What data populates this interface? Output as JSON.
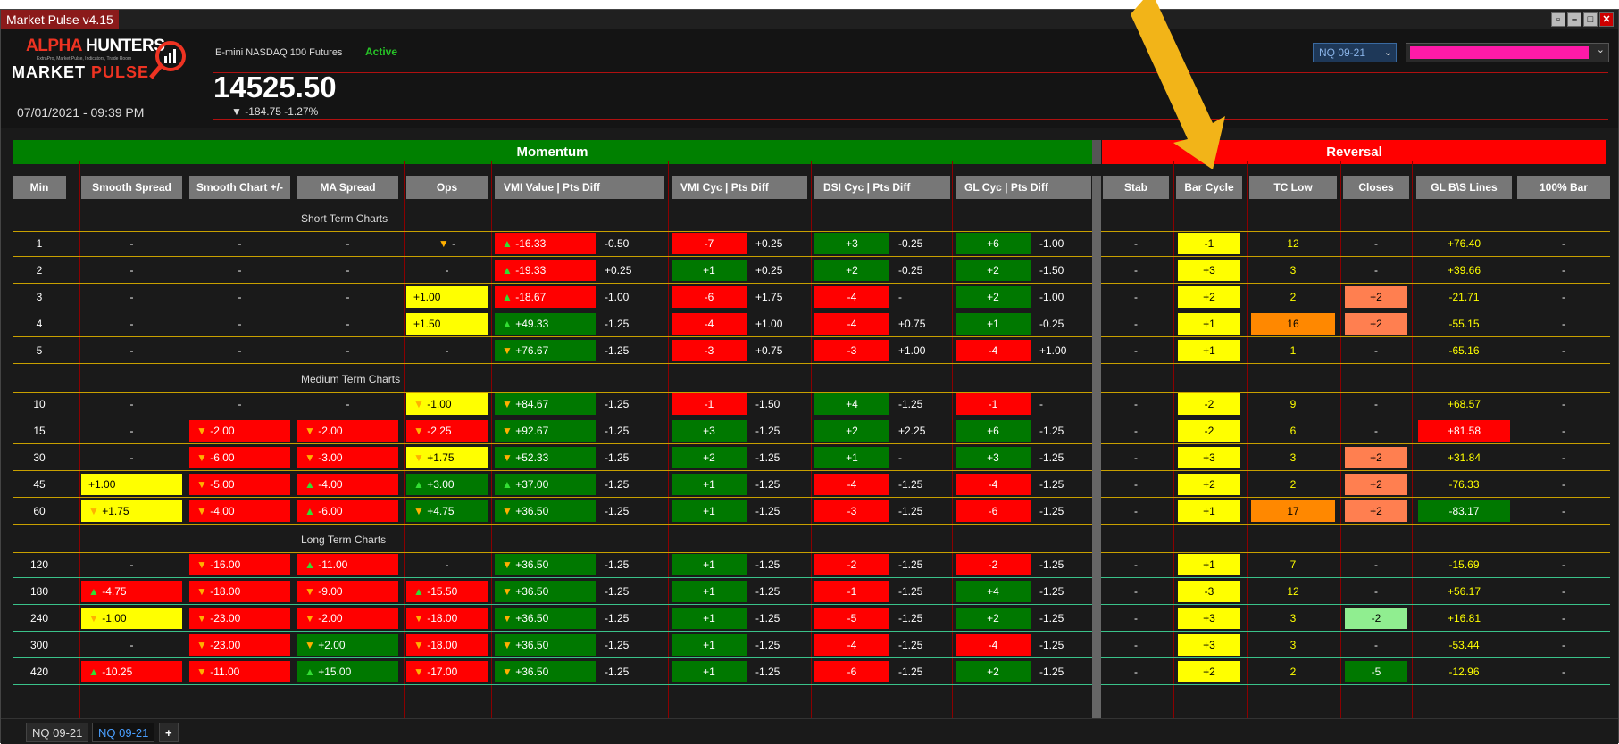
{
  "window": {
    "title": "Market Pulse v4.15"
  },
  "header": {
    "logo_line1_a": "ALPHA",
    "logo_line1_b": "HUNTERS",
    "logo_sub": "ExtraPro, Market Pulse, Indicators, Trade Room",
    "logo_line2_a": "MARKET",
    "logo_line2_b": "PULSE",
    "instrument": "E-mini NASDAQ 100 Futures",
    "status": "Active",
    "price": "14525.50",
    "change": "▼ -184.75 -1.27%",
    "datetime": "07/01/2021 - 09:39 PM",
    "symbol_select": "NQ 09-21",
    "color_select": "#ff1aa8"
  },
  "banners": {
    "momentum": "Momentum",
    "reversal": "Reversal"
  },
  "columns": [
    "Min",
    "Smooth Spread",
    "Smooth Chart +/-",
    "MA Spread",
    "Ops",
    "VMI Value | Pts Diff",
    "VMI Cyc | Pts Diff",
    "DSI Cyc | Pts Diff",
    "GL Cyc | Pts Diff",
    "Stab",
    "Bar Cycle",
    "TC Low",
    "Closes",
    "GL B\\S Lines",
    "100% Bar"
  ],
  "sections": [
    "Short Term Charts",
    "Medium Term Charts",
    "Long Term Charts"
  ],
  "rows": [
    {
      "min": "1",
      "ss": [
        "-",
        ""
      ],
      "sc": [
        "-",
        ""
      ],
      "ma": [
        "-",
        ""
      ],
      "ops": [
        "▼ -",
        "",
        ""
      ],
      "vmi": [
        "▲ -16.33",
        "red",
        "-0.50"
      ],
      "vmic": [
        "-7",
        "red",
        "+0.25"
      ],
      "dsi": [
        "+3",
        "green",
        "-0.25"
      ],
      "gl": [
        "+6",
        "green",
        "-1.00"
      ],
      "stab": "-",
      "bar": [
        "-1",
        "yellow"
      ],
      "tc": [
        "12",
        ""
      ],
      "closes": [
        "-",
        ""
      ],
      "glbs": [
        "+76.40",
        ""
      ],
      "b100": "-"
    },
    {
      "min": "2",
      "ss": [
        "-",
        ""
      ],
      "sc": [
        "-",
        ""
      ],
      "ma": [
        "-",
        ""
      ],
      "ops": [
        "-",
        "",
        ""
      ],
      "vmi": [
        "▲ -19.33",
        "red",
        "+0.25"
      ],
      "vmic": [
        "+1",
        "green",
        "+0.25"
      ],
      "dsi": [
        "+2",
        "green",
        "-0.25"
      ],
      "gl": [
        "+2",
        "green",
        "-1.50"
      ],
      "stab": "-",
      "bar": [
        "+3",
        "yellow"
      ],
      "tc": [
        "3",
        ""
      ],
      "closes": [
        "-",
        ""
      ],
      "glbs": [
        "+39.66",
        ""
      ],
      "b100": "-"
    },
    {
      "min": "3",
      "ss": [
        "-",
        ""
      ],
      "sc": [
        "-",
        ""
      ],
      "ma": [
        "-",
        ""
      ],
      "ops": [
        "+1.00",
        "yellow",
        ""
      ],
      "vmi": [
        "▲ -18.67",
        "red",
        "-1.00"
      ],
      "vmic": [
        "-6",
        "red",
        "+1.75"
      ],
      "dsi": [
        "-4",
        "red",
        "-"
      ],
      "gl": [
        "+2",
        "green",
        "-1.00"
      ],
      "stab": "-",
      "bar": [
        "+2",
        "yellow"
      ],
      "tc": [
        "2",
        ""
      ],
      "closes": [
        "+2",
        "salmon"
      ],
      "glbs": [
        "-21.71",
        ""
      ],
      "b100": "-"
    },
    {
      "min": "4",
      "ss": [
        "-",
        ""
      ],
      "sc": [
        "-",
        ""
      ],
      "ma": [
        "-",
        ""
      ],
      "ops": [
        "+1.50",
        "yellow",
        ""
      ],
      "vmi": [
        "▲ +49.33",
        "green",
        "-1.25"
      ],
      "vmic": [
        "-4",
        "red",
        "+1.00"
      ],
      "dsi": [
        "-4",
        "red",
        "+0.75"
      ],
      "gl": [
        "+1",
        "green",
        "-0.25"
      ],
      "stab": "-",
      "bar": [
        "+1",
        "yellow"
      ],
      "tc": [
        "16",
        "orange"
      ],
      "closes": [
        "+2",
        "salmon"
      ],
      "glbs": [
        "-55.15",
        ""
      ],
      "b100": "-"
    },
    {
      "min": "5",
      "ss": [
        "-",
        ""
      ],
      "sc": [
        "-",
        ""
      ],
      "ma": [
        "-",
        ""
      ],
      "ops": [
        "-",
        "",
        ""
      ],
      "vmi": [
        "▼ +76.67",
        "green",
        "-1.25"
      ],
      "vmic": [
        "-3",
        "red",
        "+0.75"
      ],
      "dsi": [
        "-3",
        "red",
        "+1.00"
      ],
      "gl": [
        "-4",
        "red",
        "+1.00"
      ],
      "stab": "-",
      "bar": [
        "+1",
        "yellow"
      ],
      "tc": [
        "1",
        ""
      ],
      "closes": [
        "-",
        ""
      ],
      "glbs": [
        "-65.16",
        ""
      ],
      "b100": "-"
    },
    {
      "min": "10",
      "ss": [
        "-",
        ""
      ],
      "sc": [
        "-",
        ""
      ],
      "ma": [
        "-",
        ""
      ],
      "ops": [
        "▼ -1.00",
        "yellow",
        ""
      ],
      "vmi": [
        "▼ +84.67",
        "green",
        "-1.25"
      ],
      "vmic": [
        "-1",
        "red",
        "-1.50"
      ],
      "dsi": [
        "+4",
        "green",
        "-1.25"
      ],
      "gl": [
        "-1",
        "red",
        "-"
      ],
      "stab": "-",
      "bar": [
        "-2",
        "yellow"
      ],
      "tc": [
        "9",
        ""
      ],
      "closes": [
        "-",
        ""
      ],
      "glbs": [
        "+68.57",
        ""
      ],
      "b100": "-"
    },
    {
      "min": "15",
      "ss": [
        "-",
        ""
      ],
      "sc": [
        "▼ -2.00",
        "red"
      ],
      "ma": [
        "▼ -2.00",
        "red"
      ],
      "ops": [
        "▼ -2.25",
        "red",
        ""
      ],
      "vmi": [
        "▼ +92.67",
        "green",
        "-1.25"
      ],
      "vmic": [
        "+3",
        "green",
        "-1.25"
      ],
      "dsi": [
        "+2",
        "green",
        "+2.25"
      ],
      "gl": [
        "+6",
        "green",
        "-1.25"
      ],
      "stab": "-",
      "bar": [
        "-2",
        "yellow"
      ],
      "tc": [
        "6",
        ""
      ],
      "closes": [
        "-",
        ""
      ],
      "glbs": [
        "+81.58",
        "red"
      ],
      "b100": "-"
    },
    {
      "min": "30",
      "ss": [
        "-",
        ""
      ],
      "sc": [
        "▼ -6.00",
        "red"
      ],
      "ma": [
        "▼ -3.00",
        "red"
      ],
      "ops": [
        "▼ +1.75",
        "yellow",
        ""
      ],
      "vmi": [
        "▼ +52.33",
        "green",
        "-1.25"
      ],
      "vmic": [
        "+2",
        "green",
        "-1.25"
      ],
      "dsi": [
        "+1",
        "green",
        "-"
      ],
      "gl": [
        "+3",
        "green",
        "-1.25"
      ],
      "stab": "-",
      "bar": [
        "+3",
        "yellow"
      ],
      "tc": [
        "3",
        ""
      ],
      "closes": [
        "+2",
        "salmon"
      ],
      "glbs": [
        "+31.84",
        ""
      ],
      "b100": "-"
    },
    {
      "min": "45",
      "ss": [
        "+1.00",
        "yellow"
      ],
      "sc": [
        "▼ -5.00",
        "red"
      ],
      "ma": [
        "▲ -4.00",
        "red"
      ],
      "ops": [
        "▲ +3.00",
        "green",
        ""
      ],
      "vmi": [
        "▲ +37.00",
        "green",
        "-1.25"
      ],
      "vmic": [
        "+1",
        "green",
        "-1.25"
      ],
      "dsi": [
        "-4",
        "red",
        "-1.25"
      ],
      "gl": [
        "-4",
        "red",
        "-1.25"
      ],
      "stab": "-",
      "bar": [
        "+2",
        "yellow"
      ],
      "tc": [
        "2",
        ""
      ],
      "closes": [
        "+2",
        "salmon"
      ],
      "glbs": [
        "-76.33",
        ""
      ],
      "b100": "-"
    },
    {
      "min": "60",
      "ss": [
        "▼ +1.75",
        "yellow"
      ],
      "sc": [
        "▼ -4.00",
        "red"
      ],
      "ma": [
        "▲ -6.00",
        "red"
      ],
      "ops": [
        "▼ +4.75",
        "green",
        ""
      ],
      "vmi": [
        "▼ +36.50",
        "green",
        "-1.25"
      ],
      "vmic": [
        "+1",
        "green",
        "-1.25"
      ],
      "dsi": [
        "-3",
        "red",
        "-1.25"
      ],
      "gl": [
        "-6",
        "red",
        "-1.25"
      ],
      "stab": "-",
      "bar": [
        "+1",
        "yellow"
      ],
      "tc": [
        "17",
        "orange"
      ],
      "closes": [
        "+2",
        "salmon"
      ],
      "glbs": [
        "-83.17",
        "green"
      ],
      "b100": "-"
    },
    {
      "min": "120",
      "ss": [
        "-",
        ""
      ],
      "sc": [
        "▼ -16.00",
        "red"
      ],
      "ma": [
        "▲ -11.00",
        "red"
      ],
      "ops": [
        "-",
        "",
        ""
      ],
      "vmi": [
        "▼ +36.50",
        "green",
        "-1.25"
      ],
      "vmic": [
        "+1",
        "green",
        "-1.25"
      ],
      "dsi": [
        "-2",
        "red",
        "-1.25"
      ],
      "gl": [
        "-2",
        "red",
        "-1.25"
      ],
      "stab": "-",
      "bar": [
        "+1",
        "yellow"
      ],
      "tc": [
        "7",
        ""
      ],
      "closes": [
        "-",
        ""
      ],
      "glbs": [
        "-15.69",
        ""
      ],
      "b100": "-"
    },
    {
      "min": "180",
      "ss": [
        "▲ -4.75",
        "red"
      ],
      "sc": [
        "▼ -18.00",
        "red"
      ],
      "ma": [
        "▼ -9.00",
        "red"
      ],
      "ops": [
        "▲ -15.50",
        "red",
        ""
      ],
      "vmi": [
        "▼ +36.50",
        "green",
        "-1.25"
      ],
      "vmic": [
        "+1",
        "green",
        "-1.25"
      ],
      "dsi": [
        "-1",
        "red",
        "-1.25"
      ],
      "gl": [
        "+4",
        "green",
        "-1.25"
      ],
      "stab": "-",
      "bar": [
        "-3",
        "yellow"
      ],
      "tc": [
        "12",
        ""
      ],
      "closes": [
        "-",
        ""
      ],
      "glbs": [
        "+56.17",
        ""
      ],
      "b100": "-"
    },
    {
      "min": "240",
      "ss": [
        "▼ -1.00",
        "yellow"
      ],
      "sc": [
        "▼ -23.00",
        "red"
      ],
      "ma": [
        "▼ -2.00",
        "red"
      ],
      "ops": [
        "▼ -18.00",
        "red",
        ""
      ],
      "vmi": [
        "▼ +36.50",
        "green",
        "-1.25"
      ],
      "vmic": [
        "+1",
        "green",
        "-1.25"
      ],
      "dsi": [
        "-5",
        "red",
        "-1.25"
      ],
      "gl": [
        "+2",
        "green",
        "-1.25"
      ],
      "stab": "-",
      "bar": [
        "+3",
        "yellow"
      ],
      "tc": [
        "3",
        ""
      ],
      "closes": [
        "-2",
        "lgreen"
      ],
      "glbs": [
        "+16.81",
        ""
      ],
      "b100": "-"
    },
    {
      "min": "300",
      "ss": [
        "-",
        ""
      ],
      "sc": [
        "▼ -23.00",
        "red"
      ],
      "ma": [
        "▼ +2.00",
        "green"
      ],
      "ops": [
        "▼ -18.00",
        "red",
        ""
      ],
      "vmi": [
        "▼ +36.50",
        "green",
        "-1.25"
      ],
      "vmic": [
        "+1",
        "green",
        "-1.25"
      ],
      "dsi": [
        "-4",
        "red",
        "-1.25"
      ],
      "gl": [
        "-4",
        "red",
        "-1.25"
      ],
      "stab": "-",
      "bar": [
        "+3",
        "yellow"
      ],
      "tc": [
        "3",
        ""
      ],
      "closes": [
        "-",
        ""
      ],
      "glbs": [
        "-53.44",
        ""
      ],
      "b100": "-"
    },
    {
      "min": "420",
      "ss": [
        "▲ -10.25",
        "red"
      ],
      "sc": [
        "▼ -11.00",
        "red"
      ],
      "ma": [
        "▲ +15.00",
        "green"
      ],
      "ops": [
        "▼ -17.00",
        "red",
        ""
      ],
      "vmi": [
        "▼ +36.50",
        "green",
        "-1.25"
      ],
      "vmic": [
        "+1",
        "green",
        "-1.25"
      ],
      "dsi": [
        "-6",
        "red",
        "-1.25"
      ],
      "gl": [
        "+2",
        "green",
        "-1.25"
      ],
      "stab": "-",
      "bar": [
        "+2",
        "yellow"
      ],
      "tc": [
        "2",
        ""
      ],
      "closes": [
        "-5",
        "green"
      ],
      "glbs": [
        "-12.96",
        ""
      ],
      "b100": "-"
    }
  ],
  "tabs": [
    "NQ 09-21",
    "NQ 09-21",
    "+"
  ],
  "colors": {
    "red": "#ff0000",
    "green": "#007800",
    "yellow": "#ffff00",
    "orange": "#ff8800",
    "salmon": "#ff7f50",
    "light_green": "#90ee90",
    "annotation_arrow": "#f2b418"
  }
}
